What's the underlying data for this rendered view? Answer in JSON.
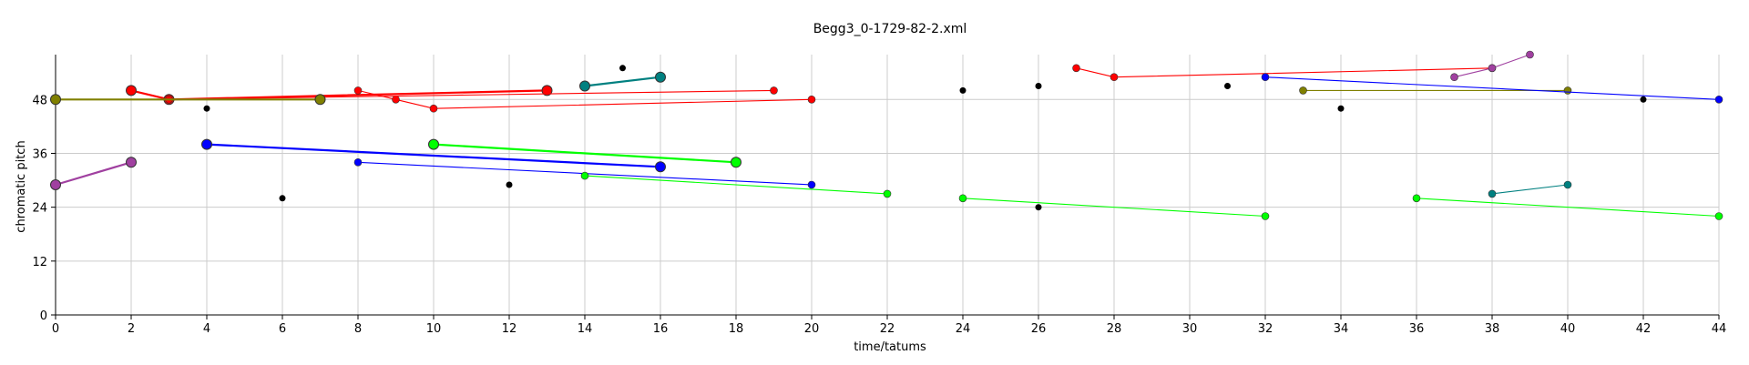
{
  "chart_data": {
    "type": "scatter",
    "title": "Begg3_0-1729-82-2.xml",
    "xlabel": "time/tatums",
    "ylabel": "chromatic pitch",
    "xlim": [
      0,
      44
    ],
    "ylim": [
      0,
      58
    ],
    "xticks": [
      0,
      2,
      4,
      6,
      8,
      10,
      12,
      14,
      16,
      18,
      20,
      22,
      24,
      26,
      28,
      30,
      32,
      34,
      36,
      38,
      40,
      42,
      44
    ],
    "yticks": [
      0,
      12,
      24,
      36,
      48
    ],
    "grid": true,
    "series": [
      {
        "color": "#ff0000",
        "style": "thick",
        "points": [
          [
            2,
            50
          ],
          [
            3,
            48
          ],
          [
            13,
            50
          ]
        ]
      },
      {
        "color": "#ff0000",
        "style": "thin",
        "points": [
          [
            8,
            50
          ],
          [
            9,
            48
          ],
          [
            10,
            46
          ],
          [
            20,
            48
          ]
        ]
      },
      {
        "color": "#ff0000",
        "style": "thin",
        "points": [
          [
            3,
            48
          ],
          [
            19,
            50
          ]
        ]
      },
      {
        "color": "#ff0000",
        "style": "thin",
        "points": [
          [
            27,
            55
          ],
          [
            28,
            53
          ],
          [
            38,
            55
          ]
        ]
      },
      {
        "color": "#808000",
        "style": "thick",
        "points": [
          [
            0,
            48
          ],
          [
            7,
            48
          ]
        ]
      },
      {
        "color": "#808000",
        "style": "thin",
        "points": [
          [
            33,
            50
          ],
          [
            40,
            50
          ]
        ]
      },
      {
        "color": "#008080",
        "style": "thick",
        "points": [
          [
            14,
            51
          ],
          [
            16,
            53
          ]
        ]
      },
      {
        "color": "#008080",
        "style": "thin",
        "points": [
          [
            38,
            27
          ],
          [
            40,
            29
          ]
        ]
      },
      {
        "color": "#0000ff",
        "style": "thick",
        "points": [
          [
            4,
            38
          ],
          [
            16,
            33
          ]
        ]
      },
      {
        "color": "#0000ff",
        "style": "thin",
        "points": [
          [
            8,
            34
          ],
          [
            20,
            29
          ]
        ]
      },
      {
        "color": "#0000ff",
        "style": "thin",
        "points": [
          [
            32,
            53
          ],
          [
            44,
            48
          ]
        ]
      },
      {
        "color": "#00ff00",
        "style": "thick",
        "points": [
          [
            10,
            38
          ],
          [
            18,
            34
          ]
        ]
      },
      {
        "color": "#00ff00",
        "style": "thin",
        "points": [
          [
            14,
            31
          ],
          [
            22,
            27
          ]
        ]
      },
      {
        "color": "#00ff00",
        "style": "thin",
        "points": [
          [
            24,
            26
          ],
          [
            32,
            22
          ]
        ]
      },
      {
        "color": "#00ff00",
        "style": "thin",
        "points": [
          [
            36,
            26
          ],
          [
            44,
            22
          ]
        ]
      },
      {
        "color": "#a040a0",
        "style": "thick",
        "points": [
          [
            0,
            29
          ],
          [
            2,
            34
          ]
        ]
      },
      {
        "color": "#a040a0",
        "style": "thin",
        "points": [
          [
            37,
            53
          ],
          [
            38,
            55
          ],
          [
            39,
            58
          ]
        ]
      },
      {
        "color": "#000000",
        "style": "dots",
        "points": [
          [
            4,
            46
          ],
          [
            6,
            26
          ],
          [
            12,
            29
          ],
          [
            15,
            55
          ],
          [
            24,
            50
          ],
          [
            26,
            51
          ],
          [
            26,
            24
          ],
          [
            31,
            51
          ],
          [
            34,
            46
          ],
          [
            42,
            48
          ]
        ]
      }
    ]
  }
}
